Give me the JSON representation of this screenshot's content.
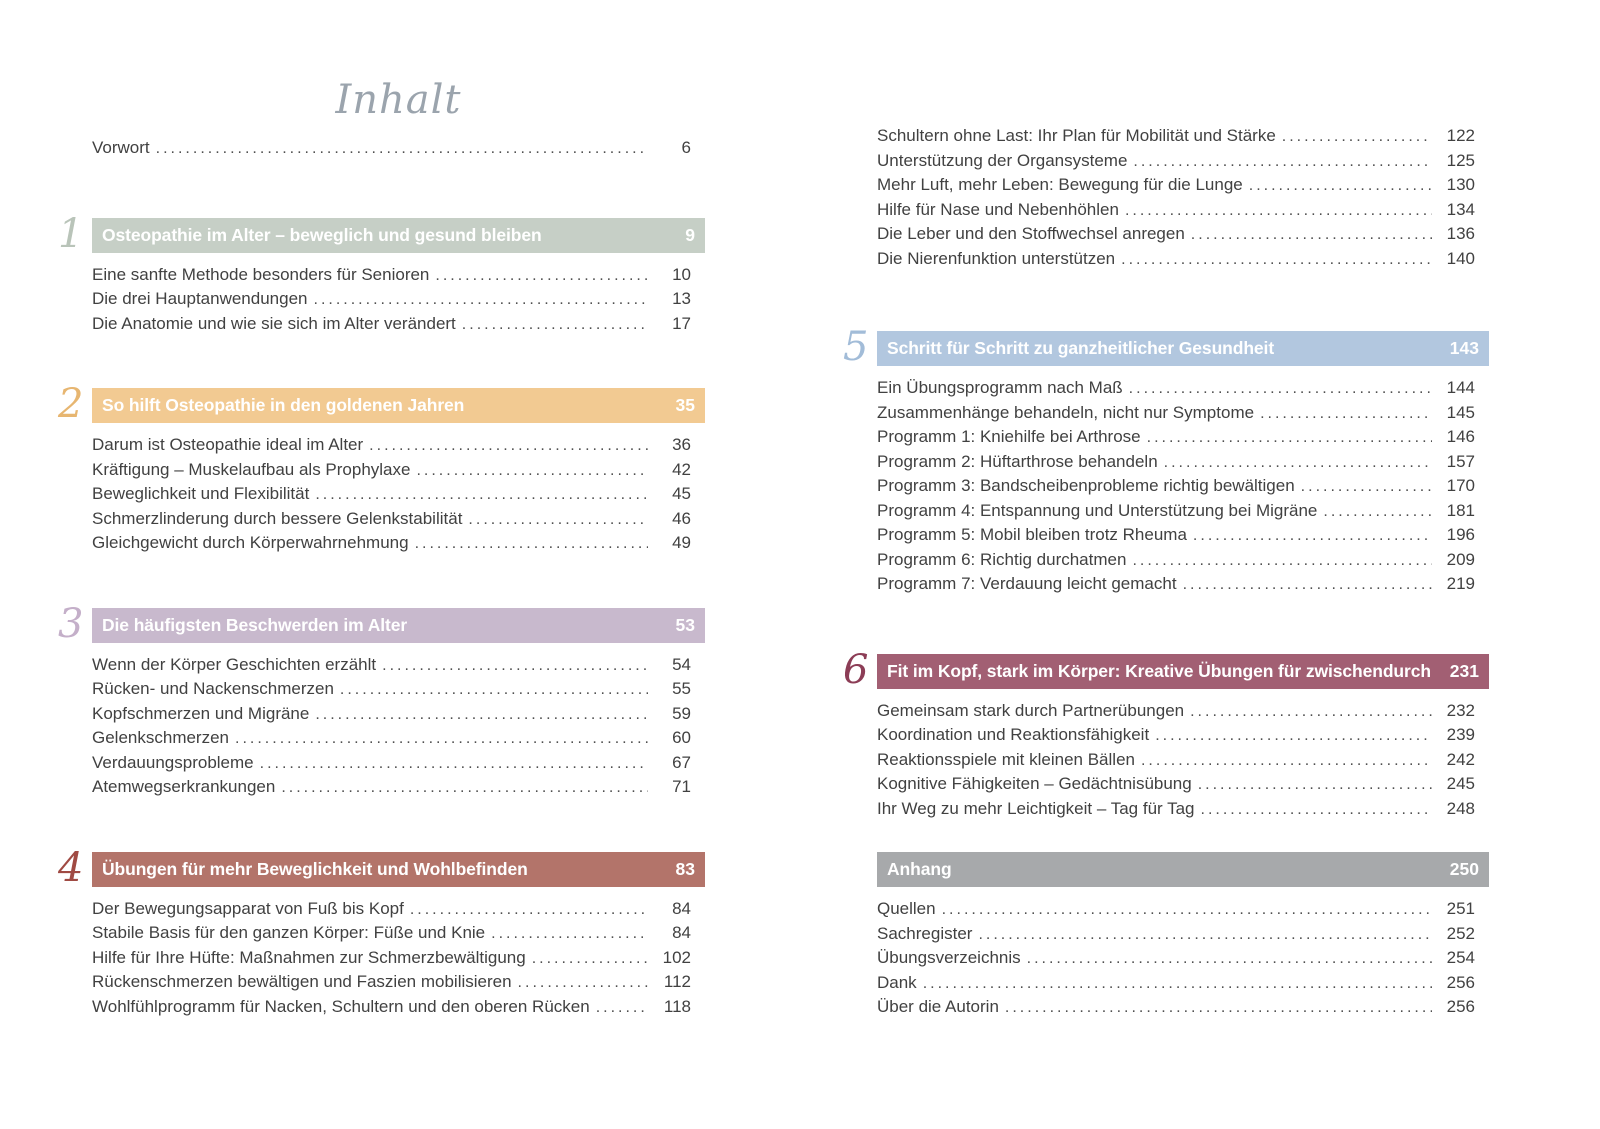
{
  "title": "Inhalt",
  "left": {
    "vorwort": {
      "label": "Vorwort",
      "page": "6"
    },
    "sections": [
      {
        "number": "1",
        "title": "Osteopathie im Alter – beweglich und gesund bleiben",
        "page": "9",
        "bar_color": "#c6cfc6",
        "number_color": "#b9c4b9",
        "entries": [
          {
            "label": "Eine sanfte Methode besonders für Senioren",
            "page": "10"
          },
          {
            "label": "Die drei Hauptanwendungen",
            "page": "13"
          },
          {
            "label": "Die Anatomie und wie sie sich im Alter verändert",
            "page": "17"
          }
        ]
      },
      {
        "number": "2",
        "title": "So hilft Osteopathie in den goldenen Jahren",
        "page": "35",
        "bar_color": "#f2ca92",
        "number_color": "#e7b671",
        "entries": [
          {
            "label": "Darum ist Osteopathie ideal im Alter",
            "page": "36"
          },
          {
            "label": "Kräftigung – Muskelaufbau als Prophylaxe",
            "page": "42"
          },
          {
            "label": "Beweglichkeit und Flexibilität",
            "page": "45"
          },
          {
            "label": "Schmerzlinderung durch bessere Gelenkstabilität",
            "page": "46"
          },
          {
            "label": "Gleichgewicht durch Körperwahrnehmung",
            "page": "49"
          }
        ]
      },
      {
        "number": "3",
        "title": "Die häufigsten Beschwerden im Alter",
        "page": "53",
        "bar_color": "#c8b9cd",
        "number_color": "#c4afc9",
        "entries": [
          {
            "label": "Wenn der Körper Geschichten erzählt",
            "page": "54"
          },
          {
            "label": "Rücken- und Nackenschmerzen",
            "page": "55"
          },
          {
            "label": "Kopfschmerzen und Migräne",
            "page": "59"
          },
          {
            "label": "Gelenkschmerzen",
            "page": "60"
          },
          {
            "label": "Verdauungsprobleme",
            "page": "67"
          },
          {
            "label": "Atemwegserkrankungen",
            "page": "71"
          }
        ]
      },
      {
        "number": "4",
        "title": "Übungen für mehr Beweglichkeit und Wohlbefinden",
        "page": "83",
        "bar_color": "#b3746a",
        "number_color": "#a04a43",
        "entries": [
          {
            "label": "Der Bewegungsapparat von Fuß bis Kopf",
            "page": "84"
          },
          {
            "label": "Stabile Basis für den ganzen Körper: Füße und Knie",
            "page": "84"
          },
          {
            "label": "Hilfe für Ihre Hüfte: Maßnahmen zur Schmerzbewältigung",
            "page": "102"
          },
          {
            "label": "Rückenschmerzen bewältigen und Faszien mobilisieren",
            "page": "112"
          },
          {
            "label": "Wohlfühlprogramm für Nacken, Schultern und den oberen Rücken",
            "page": "118"
          }
        ]
      }
    ]
  },
  "right": {
    "continuation": {
      "entries": [
        {
          "label": "Schultern ohne Last: Ihr Plan für Mobilität und Stärke",
          "page": "122"
        },
        {
          "label": "Unterstützung der Organsysteme",
          "page": "125"
        },
        {
          "label": "Mehr Luft, mehr Leben: Bewegung für die Lunge",
          "page": "130"
        },
        {
          "label": "Hilfe für Nase und Nebenhöhlen",
          "page": "134"
        },
        {
          "label": "Die Leber und den Stoffwechsel anregen",
          "page": "136"
        },
        {
          "label": "Die Nierenfunktion unterstützen",
          "page": "140"
        }
      ]
    },
    "sections": [
      {
        "number": "5",
        "title": "Schritt für Schritt zu ganzheitlicher Gesundheit",
        "page": "143",
        "bar_color": "#b2c7df",
        "number_color": "#a2bcd8",
        "entries": [
          {
            "label": "Ein Übungsprogramm nach Maß",
            "page": "144"
          },
          {
            "label": "Zusammenhänge behandeln, nicht nur Symptome",
            "page": "145"
          },
          {
            "label": "Programm 1: Kniehilfe bei Arthrose",
            "page": "146"
          },
          {
            "label": "Programm 2: Hüftarthrose behandeln",
            "page": "157"
          },
          {
            "label": "Programm 3: Bandscheibenprobleme richtig bewältigen",
            "page": "170"
          },
          {
            "label": "Programm 4: Entspannung und Unterstützung bei Migräne",
            "page": "181"
          },
          {
            "label": "Programm 5: Mobil bleiben trotz Rheuma",
            "page": "196"
          },
          {
            "label": "Programm 6: Richtig durchatmen",
            "page": "209"
          },
          {
            "label": "Programm 7: Verdauung leicht gemacht",
            "page": "219"
          }
        ]
      },
      {
        "number": "6",
        "title": "Fit im Kopf, stark im Körper: Kreative Übungen für zwischendurch",
        "page": "231",
        "bar_color": "#a25f73",
        "number_color": "#8c3d56",
        "entries": [
          {
            "label": "Gemeinsam stark durch Partnerübungen",
            "page": "232"
          },
          {
            "label": "Koordination und Reaktionsfähigkeit",
            "page": "239"
          },
          {
            "label": "Reaktionsspiele mit kleinen Bällen",
            "page": "242"
          },
          {
            "label": "Kognitive Fähigkeiten – Gedächtnisübung",
            "page": "245"
          },
          {
            "label": "Ihr Weg zu mehr Leichtigkeit – Tag für Tag",
            "page": "248"
          }
        ]
      },
      {
        "number": "",
        "title": "Anhang",
        "page": "250",
        "bar_color": "#a7a9ab",
        "number_color": "#a7a9ab",
        "entries": [
          {
            "label": "Quellen",
            "page": "251"
          },
          {
            "label": "Sachregister",
            "page": "252"
          },
          {
            "label": "Übungsverzeichnis",
            "page": "254"
          },
          {
            "label": "Dank",
            "page": "256"
          },
          {
            "label": "Über die Autorin",
            "page": "256"
          }
        ]
      }
    ]
  }
}
